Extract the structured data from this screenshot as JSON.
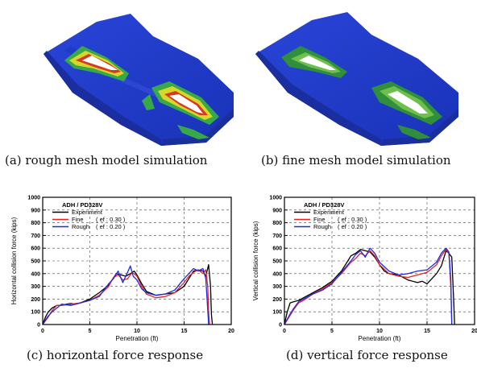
{
  "figure": {
    "captions": {
      "a": "(a) rough mesh model simulation",
      "b": "(b) fine mesh model simulation",
      "c": "(c) horizontal force response",
      "d": "(d) vertical force response"
    }
  },
  "chart_data": [
    {
      "type": "line",
      "title": "ADH / PD328V",
      "xlabel": "Penetration (ft)",
      "ylabel": "Horizontal collision force (kips)",
      "xlim": [
        0,
        20
      ],
      "ylim": [
        0,
        1000
      ],
      "xticks": [
        "0",
        "5",
        "10",
        "15",
        "20"
      ],
      "yticks": [
        "0",
        "100",
        "200",
        "300",
        "400",
        "500",
        "600",
        "700",
        "800",
        "900",
        "1000"
      ],
      "grid": "dashed",
      "legend_position": "top-left",
      "series": [
        {
          "name": "Experiment",
          "label_suffix": "",
          "color": "#000000",
          "x": [
            0,
            0.3,
            0.6,
            1.0,
            1.5,
            2.0,
            2.5,
            3.0,
            3.5,
            4.0,
            5.0,
            6.0,
            7.0,
            7.8,
            8.3,
            8.8,
            9.3,
            9.7,
            10.0,
            10.5,
            11.0,
            12.0,
            13.0,
            14.0,
            15.0,
            15.5,
            16.0,
            16.5,
            17.0,
            17.3,
            17.6,
            17.8,
            17.9,
            18.0
          ],
          "y": [
            0,
            60,
            100,
            130,
            150,
            150,
            160,
            165,
            160,
            170,
            200,
            250,
            310,
            400,
            390,
            380,
            400,
            420,
            390,
            320,
            260,
            230,
            240,
            250,
            300,
            360,
            420,
            430,
            420,
            380,
            470,
            300,
            80,
            0
          ]
        },
        {
          "name": "Fine",
          "label_suffix": "( ef : 0.30 )",
          "color": "#e8231f",
          "x": [
            0,
            0.5,
            1.0,
            1.5,
            2.0,
            3.0,
            4.0,
            5.0,
            6.0,
            7.0,
            7.5,
            8.0,
            8.5,
            9.0,
            9.5,
            10.0,
            10.5,
            11.0,
            12.0,
            13.0,
            14.0,
            15.0,
            15.5,
            16.0,
            16.5,
            17.0,
            17.3,
            17.5,
            17.6,
            17.7
          ],
          "y": [
            0,
            50,
            110,
            150,
            150,
            160,
            170,
            190,
            230,
            300,
            370,
            390,
            350,
            360,
            410,
            380,
            300,
            240,
            210,
            220,
            250,
            330,
            380,
            410,
            430,
            400,
            430,
            300,
            100,
            0
          ]
        },
        {
          "name": "Rough",
          "label_suffix": "( ef : 0.20 )",
          "color": "#1f2be0",
          "x": [
            0,
            0.5,
            1.0,
            1.5,
            2.0,
            3.0,
            4.0,
            5.0,
            6.0,
            7.0,
            7.5,
            8.0,
            8.5,
            9.0,
            9.3,
            9.6,
            10.0,
            10.5,
            11.0,
            12.0,
            13.0,
            14.0,
            15.0,
            15.5,
            16.0,
            16.5,
            17.0,
            17.3,
            17.5,
            17.6
          ],
          "y": [
            0,
            60,
            100,
            130,
            160,
            150,
            170,
            190,
            220,
            320,
            360,
            420,
            330,
            410,
            460,
            380,
            350,
            280,
            250,
            230,
            240,
            270,
            360,
            400,
            440,
            420,
            440,
            360,
            120,
            0
          ]
        }
      ]
    },
    {
      "type": "line",
      "title": "ADH / PD328V",
      "xlabel": "Penetration (ft)",
      "ylabel": "Vertical collision force (kips)",
      "xlim": [
        0,
        20
      ],
      "ylim": [
        0,
        1000
      ],
      "xticks": [
        "0",
        "5",
        "10",
        "15",
        "20"
      ],
      "yticks": [
        "0",
        "100",
        "200",
        "300",
        "400",
        "500",
        "600",
        "700",
        "800",
        "900",
        "1000"
      ],
      "grid": "dashed",
      "legend_position": "top-left",
      "series": [
        {
          "name": "Experiment",
          "label_suffix": "",
          "color": "#000000",
          "x": [
            0,
            0.3,
            0.6,
            1.0,
            1.5,
            2.0,
            3.0,
            4.0,
            5.0,
            6.0,
            7.0,
            7.5,
            8.0,
            8.5,
            9.0,
            9.5,
            10.0,
            10.5,
            11.0,
            12.0,
            13.0,
            14.0,
            14.5,
            15.0,
            16.0,
            16.5,
            17.0,
            17.3,
            17.6,
            17.8,
            17.9
          ],
          "y": [
            0,
            100,
            170,
            180,
            190,
            210,
            250,
            290,
            340,
            420,
            540,
            560,
            590,
            580,
            570,
            530,
            470,
            420,
            400,
            390,
            350,
            330,
            340,
            320,
            400,
            460,
            580,
            560,
            530,
            200,
            0
          ]
        },
        {
          "name": "Fine",
          "label_suffix": "( ef : 0.30 )",
          "color": "#e8231f",
          "x": [
            0,
            0.5,
            1.0,
            1.5,
            2.0,
            3.0,
            4.0,
            5.0,
            6.0,
            7.0,
            7.5,
            8.0,
            8.5,
            9.0,
            9.5,
            10.0,
            11.0,
            12.0,
            13.0,
            14.0,
            15.0,
            16.0,
            16.5,
            17.0,
            17.3,
            17.5,
            17.6
          ],
          "y": [
            0,
            60,
            120,
            170,
            190,
            240,
            280,
            330,
            400,
            490,
            520,
            560,
            540,
            580,
            540,
            470,
            400,
            380,
            370,
            390,
            410,
            470,
            540,
            590,
            560,
            300,
            0
          ]
        },
        {
          "name": "Rough",
          "label_suffix": "( ef : 0.20 )",
          "color": "#1f2be0",
          "x": [
            0,
            0.5,
            1.0,
            1.5,
            2.0,
            3.0,
            4.0,
            5.0,
            6.0,
            7.0,
            7.5,
            8.0,
            8.5,
            9.0,
            9.5,
            10.0,
            11.0,
            12.0,
            13.0,
            14.0,
            15.0,
            16.0,
            16.5,
            17.0,
            17.3,
            17.5,
            17.6
          ],
          "y": [
            0,
            70,
            130,
            180,
            200,
            240,
            270,
            320,
            410,
            500,
            550,
            580,
            530,
            600,
            560,
            490,
            420,
            390,
            400,
            420,
            430,
            490,
            560,
            600,
            570,
            350,
            0
          ]
        }
      ]
    }
  ]
}
